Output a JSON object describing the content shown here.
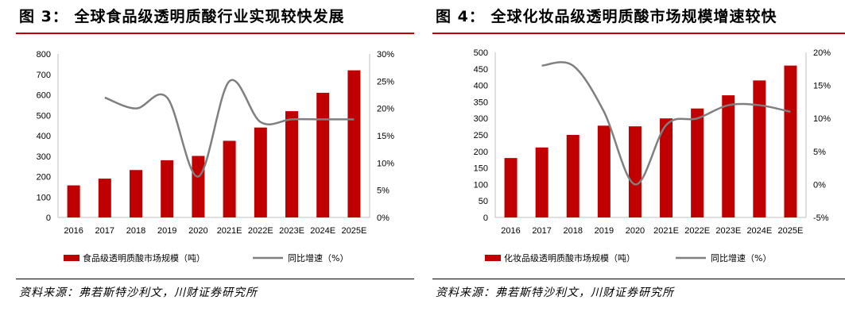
{
  "colors": {
    "bar": "#c00000",
    "line": "#7f7f7f",
    "accent_rule": "#c00000"
  },
  "figures": [
    {
      "title": "图 3： 全球食品级透明质酸行业实现较快发展",
      "source": "资料来源：弗若斯特沙利文，川财证券研究所"
    },
    {
      "title": "图 4： 全球化妆品级透明质酸市场规模增速较快",
      "source": "资料来源：弗若斯特沙利文，川财证券研究所"
    }
  ],
  "chart_data": [
    {
      "type": "bar",
      "categories": [
        "2016",
        "2017",
        "2018",
        "2019",
        "2020",
        "2021E",
        "2022E",
        "2023E",
        "2024E",
        "2025E"
      ],
      "series": [
        {
          "name": "食品级透明质酸市场规模（吨）",
          "kind": "bar",
          "axis": "left",
          "values": [
            157,
            190,
            232,
            280,
            301,
            375,
            440,
            520,
            610,
            720
          ]
        },
        {
          "name": "同比增速（%）",
          "kind": "line",
          "axis": "right",
          "values": [
            null,
            22,
            20,
            22,
            7.5,
            25,
            17.5,
            18,
            18,
            18
          ]
        }
      ],
      "y_left": {
        "min": 0,
        "max": 800,
        "step": 100,
        "ticks": [
          "0",
          "100",
          "200",
          "300",
          "400",
          "500",
          "600",
          "700",
          "800"
        ]
      },
      "y_right": {
        "min": 0,
        "max": 30,
        "step": 5,
        "ticks": [
          "0%",
          "5%",
          "10%",
          "15%",
          "20%",
          "25%",
          "30%"
        ]
      },
      "grid": false,
      "legend_position": "bottom"
    },
    {
      "type": "bar",
      "categories": [
        "2016",
        "2017",
        "2018",
        "2019",
        "2020",
        "2021E",
        "2022E",
        "2023E",
        "2024E",
        "2025E"
      ],
      "series": [
        {
          "name": "化妆品级透明质酸市场规模（吨）",
          "kind": "bar",
          "axis": "left",
          "values": [
            180,
            212,
            250,
            278,
            276,
            300,
            330,
            370,
            415,
            460
          ]
        },
        {
          "name": "同比增速（%）",
          "kind": "line",
          "axis": "right",
          "values": [
            null,
            18,
            18,
            11,
            0,
            9,
            10,
            12,
            12,
            11
          ]
        }
      ],
      "y_left": {
        "min": 0,
        "max": 500,
        "step": 50,
        "ticks": [
          "0",
          "50",
          "100",
          "150",
          "200",
          "250",
          "300",
          "350",
          "400",
          "450",
          "500"
        ]
      },
      "y_right": {
        "min": -5,
        "max": 20,
        "step": 5,
        "ticks": [
          "-5%",
          "0%",
          "5%",
          "10%",
          "15%",
          "20%"
        ]
      },
      "grid": false,
      "legend_position": "bottom"
    }
  ]
}
